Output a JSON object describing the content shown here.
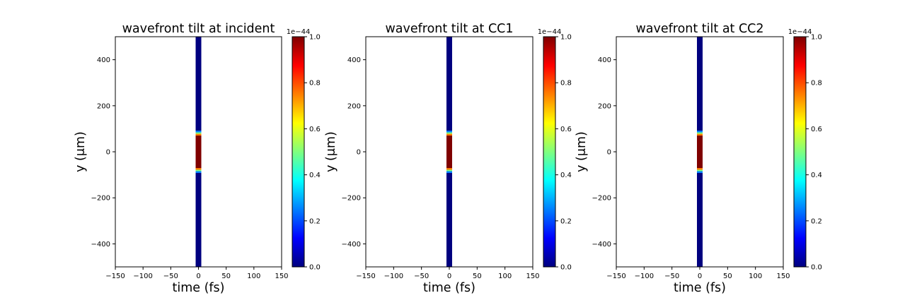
{
  "figure": {
    "colormap": "jet",
    "colormap_stops": [
      "#00007f",
      "#0000ff",
      "#007fff",
      "#00ffff",
      "#7fff7f",
      "#ffff00",
      "#ff7f00",
      "#ff0000",
      "#7f0000"
    ],
    "background_color": "#ffffff"
  },
  "chart_data": [
    {
      "type": "heatmap",
      "title": "wavefront tilt at incident",
      "xlabel": "time (fs)",
      "ylabel": "y (μm)",
      "xlim": [
        -150,
        150
      ],
      "ylim": [
        -500,
        500
      ],
      "xticks": [
        -150,
        -100,
        -50,
        0,
        50,
        100,
        150
      ],
      "yticks": [
        -400,
        -200,
        0,
        200,
        400
      ],
      "grid": false,
      "colorbar": {
        "range": [
          0,
          1.0
        ],
        "ticks": [
          0.0,
          0.2,
          0.4,
          0.6,
          0.8,
          1.0
        ],
        "multiplier_label": "1e−44"
      },
      "pulse_time_range": [
        -5,
        5
      ],
      "profile": [
        {
          "y_range": [
            -500,
            -92
          ],
          "value": 0.0
        },
        {
          "y_range": [
            -92,
            -85
          ],
          "value": 0.25
        },
        {
          "y_range": [
            -85,
            -78
          ],
          "value": 0.5
        },
        {
          "y_range": [
            -78,
            -70
          ],
          "value": 0.75
        },
        {
          "y_range": [
            -70,
            70
          ],
          "value": 1.0
        },
        {
          "y_range": [
            70,
            78
          ],
          "value": 0.75
        },
        {
          "y_range": [
            78,
            85
          ],
          "value": 0.5
        },
        {
          "y_range": [
            85,
            92
          ],
          "value": 0.25
        },
        {
          "y_range": [
            92,
            500
          ],
          "value": 0.0
        }
      ]
    },
    {
      "type": "heatmap",
      "title": "wavefront tilt at CC1",
      "xlabel": "time (fs)",
      "ylabel": "y (μm)",
      "xlim": [
        -150,
        150
      ],
      "ylim": [
        -500,
        500
      ],
      "xticks": [
        -150,
        -100,
        -50,
        0,
        50,
        100,
        150
      ],
      "yticks": [
        -400,
        -200,
        0,
        200,
        400
      ],
      "grid": false,
      "colorbar": {
        "range": [
          0,
          1.0
        ],
        "ticks": [
          0.0,
          0.2,
          0.4,
          0.6,
          0.8,
          1.0
        ],
        "multiplier_label": "1e−44"
      },
      "pulse_time_range": [
        -5,
        5
      ],
      "profile": [
        {
          "y_range": [
            -500,
            -92
          ],
          "value": 0.0
        },
        {
          "y_range": [
            -92,
            -85
          ],
          "value": 0.25
        },
        {
          "y_range": [
            -85,
            -78
          ],
          "value": 0.5
        },
        {
          "y_range": [
            -78,
            -70
          ],
          "value": 0.75
        },
        {
          "y_range": [
            -70,
            70
          ],
          "value": 1.0
        },
        {
          "y_range": [
            70,
            78
          ],
          "value": 0.75
        },
        {
          "y_range": [
            78,
            85
          ],
          "value": 0.5
        },
        {
          "y_range": [
            85,
            92
          ],
          "value": 0.25
        },
        {
          "y_range": [
            92,
            500
          ],
          "value": 0.0
        }
      ]
    },
    {
      "type": "heatmap",
      "title": "wavefront tilt at CC2",
      "xlabel": "time (fs)",
      "ylabel": "y (μm)",
      "xlim": [
        -150,
        150
      ],
      "ylim": [
        -500,
        500
      ],
      "xticks": [
        -150,
        -100,
        -50,
        0,
        50,
        100,
        150
      ],
      "yticks": [
        -400,
        -200,
        0,
        200,
        400
      ],
      "grid": false,
      "colorbar": {
        "range": [
          0,
          1.0
        ],
        "ticks": [
          0.0,
          0.2,
          0.4,
          0.6,
          0.8,
          1.0
        ],
        "multiplier_label": "1e−44"
      },
      "pulse_time_range": [
        -5,
        5
      ],
      "profile": [
        {
          "y_range": [
            -500,
            -92
          ],
          "value": 0.0
        },
        {
          "y_range": [
            -92,
            -85
          ],
          "value": 0.25
        },
        {
          "y_range": [
            -85,
            -78
          ],
          "value": 0.5
        },
        {
          "y_range": [
            -78,
            -70
          ],
          "value": 0.75
        },
        {
          "y_range": [
            -70,
            70
          ],
          "value": 1.0
        },
        {
          "y_range": [
            70,
            78
          ],
          "value": 0.75
        },
        {
          "y_range": [
            78,
            85
          ],
          "value": 0.5
        },
        {
          "y_range": [
            85,
            92
          ],
          "value": 0.25
        },
        {
          "y_range": [
            92,
            500
          ],
          "value": 0.0
        }
      ]
    }
  ]
}
